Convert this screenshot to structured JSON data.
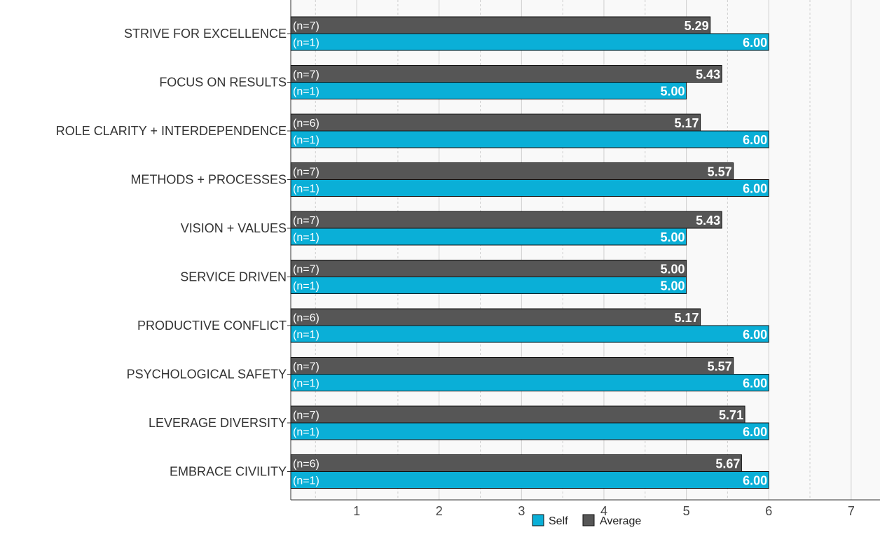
{
  "chart_data": {
    "type": "bar",
    "orientation": "horizontal",
    "categories": [
      "STRIVE FOR EXCELLENCE",
      "FOCUS ON RESULTS",
      "ROLE CLARITY + INTERDEPENDENCE",
      "METHODS + PROCESSES",
      "VISION + VALUES",
      "SERVICE DRIVEN",
      "PRODUCTIVE CONFLICT",
      "PSYCHOLOGICAL SAFETY",
      "LEVERAGE DIVERSITY",
      "EMBRACE CIVILITY"
    ],
    "series": [
      {
        "name": "Average",
        "color": "#565656",
        "values": [
          5.29,
          5.43,
          5.17,
          5.57,
          5.43,
          5.0,
          5.17,
          5.57,
          5.71,
          5.67
        ],
        "value_labels": [
          "5.29",
          "5.43",
          "5.17",
          "5.57",
          "5.43",
          "5.00",
          "5.17",
          "5.57",
          "5.71",
          "5.67"
        ],
        "n_labels": [
          "(n=7)",
          "(n=7)",
          "(n=6)",
          "(n=7)",
          "(n=7)",
          "(n=7)",
          "(n=6)",
          "(n=7)",
          "(n=7)",
          "(n=6)"
        ]
      },
      {
        "name": "Self",
        "color": "#0aafd7",
        "values": [
          6.0,
          5.0,
          6.0,
          6.0,
          5.0,
          5.0,
          6.0,
          6.0,
          6.0,
          6.0
        ],
        "value_labels": [
          "6.00",
          "5.00",
          "6.00",
          "6.00",
          "5.00",
          "5.00",
          "6.00",
          "6.00",
          "6.00",
          "6.00"
        ],
        "n_labels": [
          "(n=1)",
          "(n=1)",
          "(n=1)",
          "(n=1)",
          "(n=1)",
          "(n=1)",
          "(n=1)",
          "(n=1)",
          "(n=1)",
          "(n=1)"
        ]
      }
    ],
    "xlim": [
      0.2,
      7.35
    ],
    "xticks": [
      "1",
      "2",
      "3",
      "4",
      "5",
      "6",
      "7"
    ],
    "title": "",
    "xlabel": "",
    "ylabel": "",
    "grid": true,
    "legend": {
      "placement": "bottom-center",
      "entries": [
        "Self",
        "Average"
      ]
    },
    "colors": {
      "plot_background": "#f9f9f9",
      "grid_major": "#cfcfcf",
      "grid_minor": "#cfcfcf",
      "bar_outline": "#111111"
    }
  }
}
